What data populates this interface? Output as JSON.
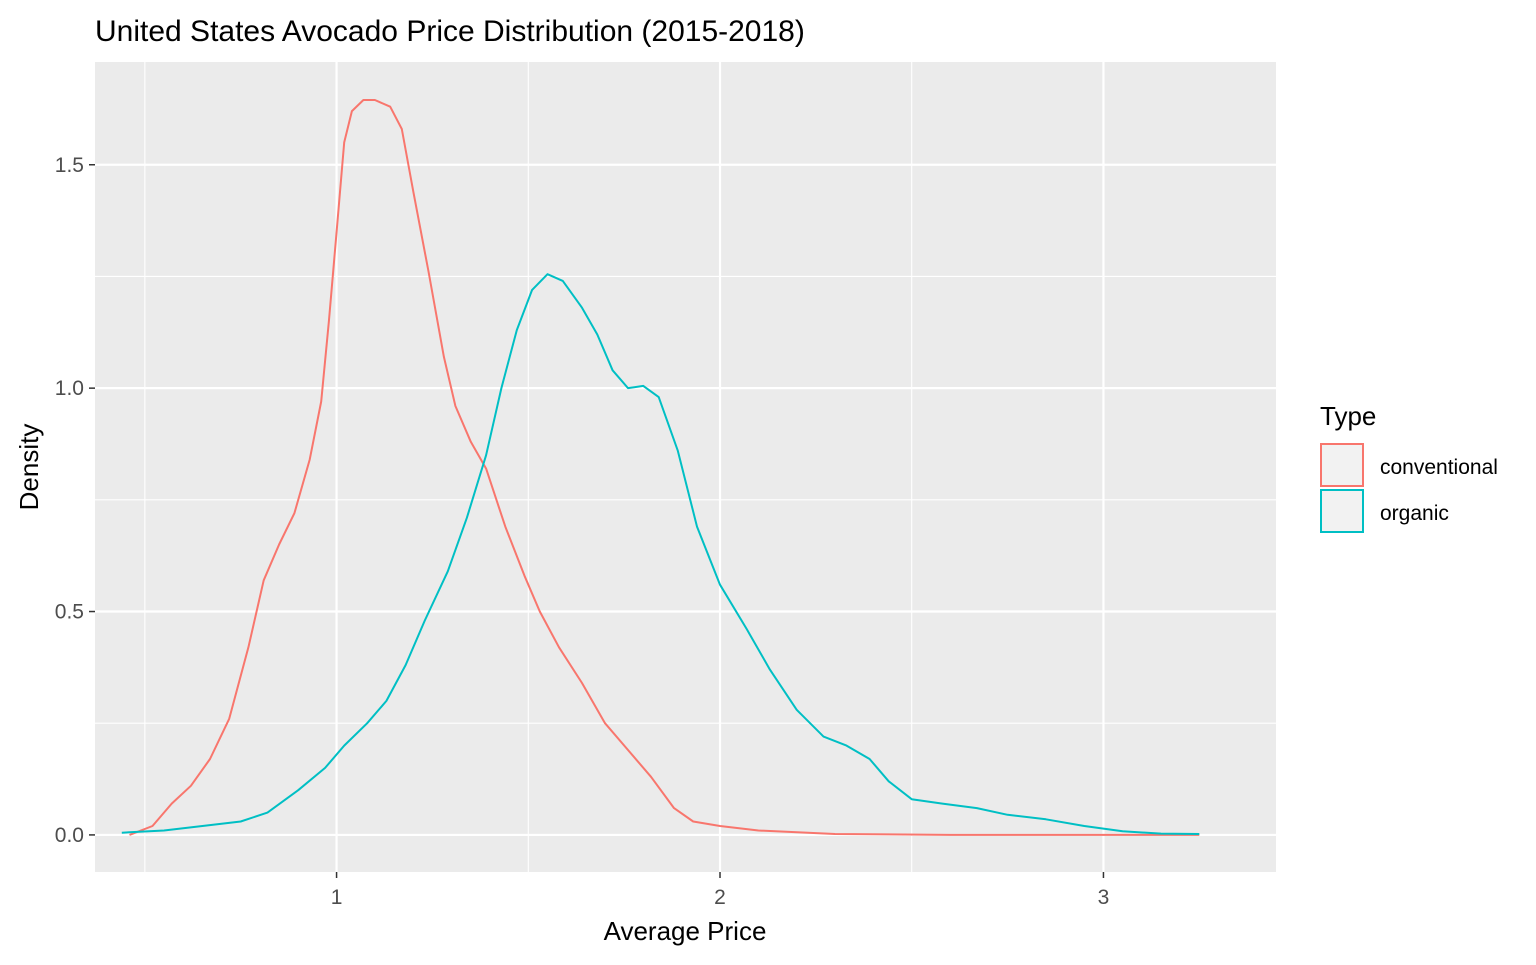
{
  "colors": {
    "conventional": "#F8766D",
    "organic": "#00BFC4",
    "panel_background": "#EBEBEB",
    "grid": "#FFFFFF",
    "axis_text": "#4D4D4D",
    "text": "#000000"
  },
  "chart_data": {
    "type": "line",
    "title": "United States Avocado Price Distribution (2015-2018)",
    "xlabel": "Average Price",
    "ylabel": "Density",
    "xlim": [
      0.37,
      3.45
    ],
    "ylim": [
      -0.083,
      1.73
    ],
    "x_ticks": [
      1,
      2,
      3
    ],
    "x_tick_labels": [
      "1",
      "2",
      "3"
    ],
    "x_minor_ticks": [
      0.5,
      1.5,
      2.5
    ],
    "y_ticks": [
      0,
      0.5,
      1,
      1.5
    ],
    "y_tick_labels": [
      "0.0",
      "0.5",
      "1.0",
      "1.5"
    ],
    "y_minor_ticks": [
      0.25,
      0.75,
      1.25
    ],
    "grid": true,
    "legend": {
      "title": "Type",
      "position": "right",
      "entries": [
        "conventional",
        "organic"
      ]
    },
    "series": [
      {
        "name": "conventional",
        "color": "#F8766D",
        "points": [
          [
            0.46,
            0.0
          ],
          [
            0.52,
            0.02
          ],
          [
            0.57,
            0.07
          ],
          [
            0.62,
            0.11
          ],
          [
            0.67,
            0.17
          ],
          [
            0.72,
            0.26
          ],
          [
            0.77,
            0.42
          ],
          [
            0.81,
            0.57
          ],
          [
            0.85,
            0.65
          ],
          [
            0.89,
            0.72
          ],
          [
            0.93,
            0.84
          ],
          [
            0.96,
            0.97
          ],
          [
            0.98,
            1.15
          ],
          [
            1.0,
            1.35
          ],
          [
            1.02,
            1.55
          ],
          [
            1.04,
            1.62
          ],
          [
            1.07,
            1.645
          ],
          [
            1.1,
            1.645
          ],
          [
            1.14,
            1.63
          ],
          [
            1.17,
            1.58
          ],
          [
            1.2,
            1.44
          ],
          [
            1.24,
            1.26
          ],
          [
            1.28,
            1.07
          ],
          [
            1.31,
            0.96
          ],
          [
            1.35,
            0.88
          ],
          [
            1.39,
            0.82
          ],
          [
            1.44,
            0.69
          ],
          [
            1.49,
            0.58
          ],
          [
            1.53,
            0.5
          ],
          [
            1.58,
            0.42
          ],
          [
            1.64,
            0.34
          ],
          [
            1.7,
            0.25
          ],
          [
            1.76,
            0.19
          ],
          [
            1.82,
            0.13
          ],
          [
            1.88,
            0.06
          ],
          [
            1.93,
            0.03
          ],
          [
            2.0,
            0.02
          ],
          [
            2.1,
            0.01
          ],
          [
            2.3,
            0.002
          ],
          [
            2.6,
            0.0
          ],
          [
            2.9,
            0.0
          ],
          [
            3.25,
            0.0
          ]
        ]
      },
      {
        "name": "organic",
        "color": "#00BFC4",
        "points": [
          [
            0.44,
            0.005
          ],
          [
            0.55,
            0.01
          ],
          [
            0.65,
            0.02
          ],
          [
            0.75,
            0.03
          ],
          [
            0.82,
            0.05
          ],
          [
            0.9,
            0.1
          ],
          [
            0.97,
            0.15
          ],
          [
            1.02,
            0.2
          ],
          [
            1.08,
            0.25
          ],
          [
            1.13,
            0.3
          ],
          [
            1.18,
            0.38
          ],
          [
            1.23,
            0.48
          ],
          [
            1.29,
            0.59
          ],
          [
            1.34,
            0.71
          ],
          [
            1.39,
            0.85
          ],
          [
            1.43,
            1.0
          ],
          [
            1.47,
            1.13
          ],
          [
            1.51,
            1.22
          ],
          [
            1.55,
            1.255
          ],
          [
            1.59,
            1.24
          ],
          [
            1.64,
            1.18
          ],
          [
            1.68,
            1.12
          ],
          [
            1.72,
            1.04
          ],
          [
            1.76,
            1.0
          ],
          [
            1.8,
            1.005
          ],
          [
            1.84,
            0.98
          ],
          [
            1.89,
            0.86
          ],
          [
            1.94,
            0.69
          ],
          [
            2.0,
            0.56
          ],
          [
            2.07,
            0.46
          ],
          [
            2.13,
            0.37
          ],
          [
            2.2,
            0.28
          ],
          [
            2.27,
            0.22
          ],
          [
            2.33,
            0.2
          ],
          [
            2.39,
            0.17
          ],
          [
            2.44,
            0.12
          ],
          [
            2.5,
            0.08
          ],
          [
            2.58,
            0.07
          ],
          [
            2.67,
            0.06
          ],
          [
            2.75,
            0.045
          ],
          [
            2.85,
            0.035
          ],
          [
            2.95,
            0.02
          ],
          [
            3.05,
            0.008
          ],
          [
            3.15,
            0.003
          ],
          [
            3.25,
            0.002
          ]
        ]
      }
    ]
  }
}
